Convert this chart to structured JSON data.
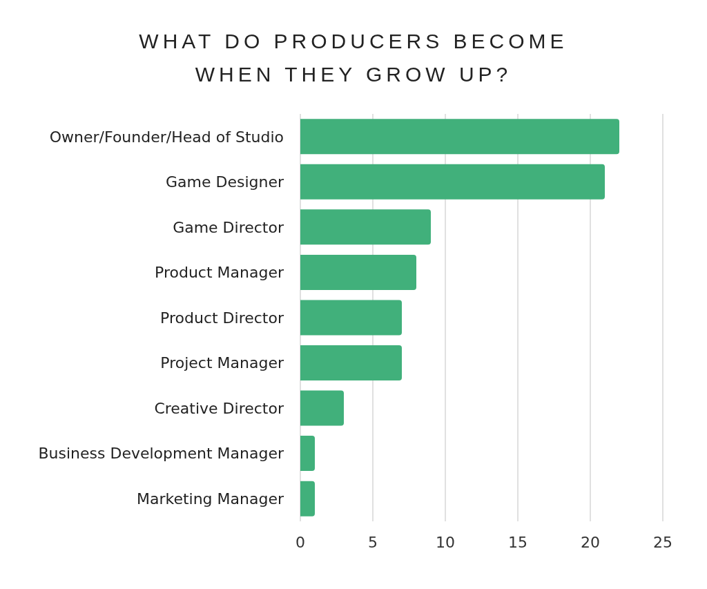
{
  "chart_data": {
    "type": "bar",
    "orientation": "horizontal",
    "title": "WHAT DO PRODUCERS BECOME WHEN THEY GROW UP?",
    "categories": [
      "Owner/Founder/Head of Studio",
      "Game Designer",
      "Game Director",
      "Product Manager",
      "Product Director",
      "Project Manager",
      "Creative Director",
      "Business Development Manager",
      "Marketing Manager"
    ],
    "values": [
      22,
      21,
      9,
      8,
      7,
      7,
      3,
      1,
      1
    ],
    "color": "#41b07b",
    "xlim": [
      0,
      25
    ],
    "xticks": [
      0,
      5,
      10,
      15,
      20,
      25
    ],
    "grid": "x"
  }
}
